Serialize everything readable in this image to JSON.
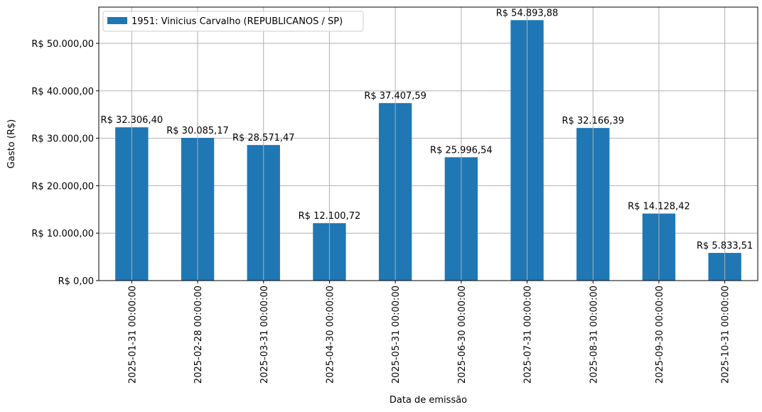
{
  "chart_data": {
    "type": "bar",
    "categories": [
      "2025-01-31 00:00:00",
      "2025-02-28 00:00:00",
      "2025-03-31 00:00:00",
      "2025-04-30 00:00:00",
      "2025-05-31 00:00:00",
      "2025-06-30 00:00:00",
      "2025-07-31 00:00:00",
      "2025-08-31 00:00:00",
      "2025-09-30 00:00:00",
      "2025-10-31 00:00:00"
    ],
    "series": [
      {
        "name": "1951: Vinicius Carvalho (REPUBLICANOS / SP)",
        "values": [
          32306.4,
          30085.17,
          28571.47,
          12100.72,
          37407.59,
          25996.54,
          54893.88,
          32166.39,
          14128.42,
          5833.51
        ],
        "labels": [
          "R$ 32.306,40",
          "R$ 30.085,17",
          "R$ 28.571,47",
          "R$ 12.100,72",
          "R$ 37.407,59",
          "R$ 25.996,54",
          "R$ 54.893,88",
          "R$ 32.166,39",
          "R$ 14.128,42",
          "R$ 5.833,51"
        ],
        "color": "#1f77b4"
      }
    ],
    "xlabel": "Data de emissão",
    "ylabel": "Gasto (R$)",
    "ylim": [
      0,
      57640
    ],
    "yticks": [
      0,
      10000,
      20000,
      30000,
      40000,
      50000
    ],
    "ytick_labels": [
      "R$ 0,00",
      "R$ 10.000,00",
      "R$ 20.000,00",
      "R$ 30.000,00",
      "R$ 40.000,00",
      "R$ 50.000,00"
    ],
    "grid": true,
    "grid_color": "#b0b0b0",
    "legend_position": "top-left"
  }
}
